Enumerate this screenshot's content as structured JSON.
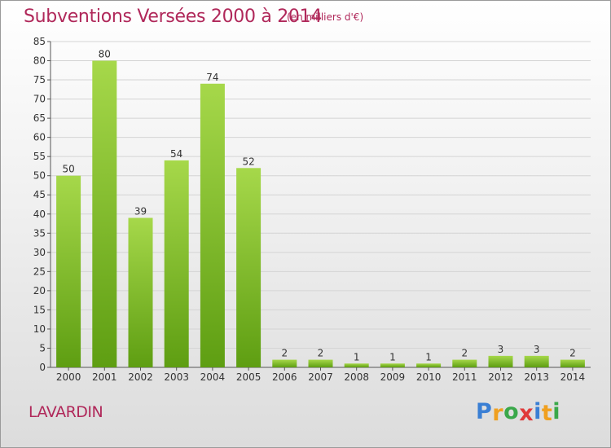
{
  "header": {
    "title": "Subventions Versées 2000 à 2014",
    "subtitle": "(en milliers d'€)"
  },
  "footer": {
    "commune": "LAVARDIN",
    "logo_letters": [
      "P",
      "r",
      "o",
      "x",
      "i",
      "t",
      "i"
    ],
    "logo_colors": [
      "#3a7fd4",
      "#f0a020",
      "#3aa84a",
      "#e03a3a",
      "#3a7fd4",
      "#f0a020",
      "#3aa84a"
    ]
  },
  "colors": {
    "bar_light": "#a6d84a",
    "bar_dark": "#5e9e12",
    "text": "#b0285a"
  },
  "chart_data": {
    "type": "bar",
    "categories": [
      "2000",
      "2001",
      "2002",
      "2003",
      "2004",
      "2005",
      "2006",
      "2007",
      "2008",
      "2009",
      "2010",
      "2011",
      "2012",
      "2013",
      "2014"
    ],
    "values": [
      50,
      80,
      39,
      54,
      74,
      52,
      2,
      2,
      1,
      1,
      1,
      2,
      3,
      3,
      2
    ],
    "title": "Subventions Versées 2000 à 2014",
    "xlabel": "",
    "ylabel": "",
    "ylim": [
      0,
      85
    ],
    "yticks": [
      0,
      5,
      10,
      15,
      20,
      25,
      30,
      35,
      40,
      45,
      50,
      55,
      60,
      65,
      70,
      75,
      80,
      85
    ],
    "grid": true,
    "data_labels": true
  }
}
